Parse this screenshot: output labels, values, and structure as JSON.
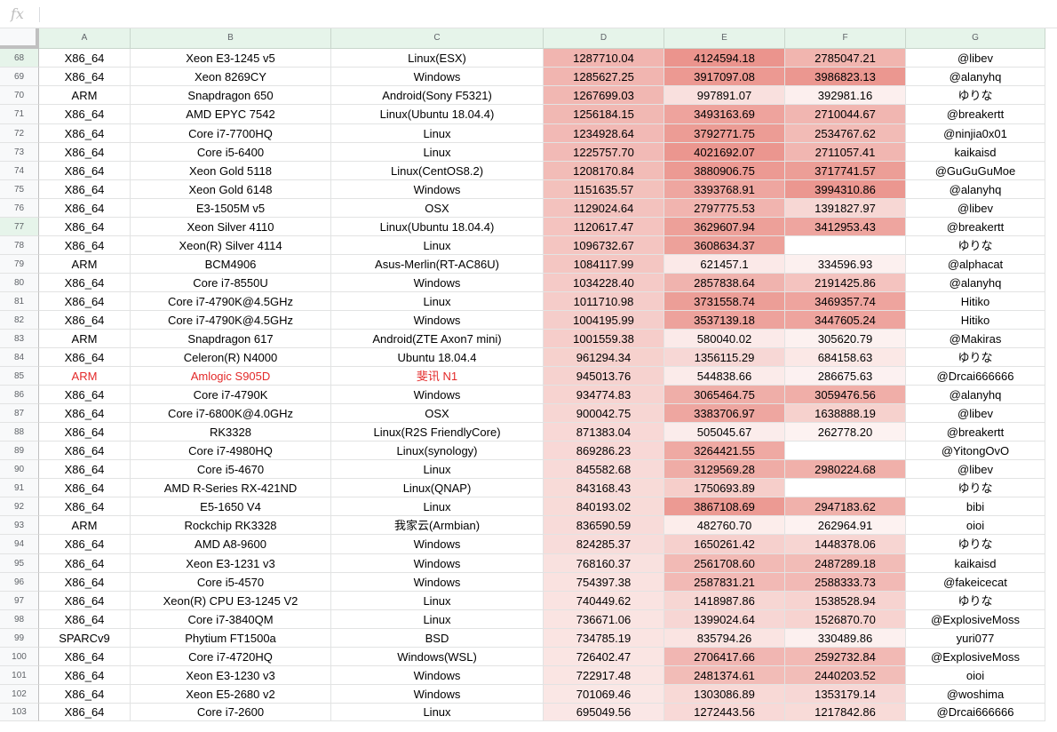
{
  "formula_bar": {
    "fx_label": "fx",
    "value": ""
  },
  "columns": [
    "A",
    "B",
    "C",
    "D",
    "E",
    "F",
    "G"
  ],
  "rows": [
    {
      "num": "68",
      "arch": "X86_64",
      "cpu": "Xeon E3-1245 v5",
      "os": "Linux(ESX)",
      "d": "1287710.04",
      "e": "4124594.18",
      "f": "2785047.21",
      "g": "@libev"
    },
    {
      "num": "69",
      "arch": "X86_64",
      "cpu": "Xeon 8269CY",
      "os": "Windows",
      "d": "1285627.25",
      "e": "3917097.08",
      "f": "3986823.13",
      "g": "@alanyhq"
    },
    {
      "num": "70",
      "arch": "ARM",
      "cpu": "Snapdragon 650",
      "os": "Android(Sony F5321)",
      "d": "1267699.03",
      "e": "997891.07",
      "f": "392981.16",
      "g": "ゆりな"
    },
    {
      "num": "71",
      "arch": "X86_64",
      "cpu": "AMD EPYC 7542",
      "os": "Linux(Ubuntu 18.04.4)",
      "d": "1256184.15",
      "e": "3493163.69",
      "f": "2710044.67",
      "g": "@breakertt"
    },
    {
      "num": "72",
      "arch": "X86_64",
      "cpu": "Core i7-7700HQ",
      "os": "Linux",
      "d": "1234928.64",
      "e": "3792771.75",
      "f": "2534767.62",
      "g": "@ninjia0x01"
    },
    {
      "num": "73",
      "arch": "X86_64",
      "cpu": "Core i5-6400",
      "os": "Linux",
      "d": "1225757.70",
      "e": "4021692.07",
      "f": "2711057.41",
      "g": "kaikaisd"
    },
    {
      "num": "74",
      "arch": "X86_64",
      "cpu": "Xeon Gold 5118",
      "os": "Linux(CentOS8.2)",
      "d": "1208170.84",
      "e": "3880906.75",
      "f": "3717741.57",
      "g": "@GuGuGuMoe"
    },
    {
      "num": "75",
      "arch": "X86_64",
      "cpu": "Xeon Gold 6148",
      "os": "Windows",
      "d": "1151635.57",
      "e": "3393768.91",
      "f": "3994310.86",
      "g": "@alanyhq"
    },
    {
      "num": "76",
      "arch": "X86_64",
      "cpu": "E3-1505M v5",
      "os": "OSX",
      "d": "1129024.64",
      "e": "2797775.53",
      "f": "1391827.97",
      "g": "@libev"
    },
    {
      "num": "77",
      "arch": "X86_64",
      "cpu": "Xeon Silver 4110",
      "os": "Linux(Ubuntu 18.04.4)",
      "d": "1120617.47",
      "e": "3629607.94",
      "f": "3412953.43",
      "g": "@breakertt"
    },
    {
      "num": "78",
      "arch": "X86_64",
      "cpu": "Xeon(R) Silver 4114",
      "os": "Linux",
      "d": "1096732.67",
      "e": "3608634.37",
      "f": "",
      "g": "ゆりな"
    },
    {
      "num": "79",
      "arch": "ARM",
      "cpu": "BCM4906",
      "os": "Asus-Merlin(RT-AC86U)",
      "d": "1084117.99",
      "e": "621457.1",
      "f": "334596.93",
      "g": "@alphacat"
    },
    {
      "num": "80",
      "arch": "X86_64",
      "cpu": "Core i7-8550U",
      "os": "Windows",
      "d": "1034228.40",
      "e": "2857838.64",
      "f": "2191425.86",
      "g": "@alanyhq"
    },
    {
      "num": "81",
      "arch": "X86_64",
      "cpu": "Core i7-4790K@4.5GHz",
      "os": "Linux",
      "d": "1011710.98",
      "e": "3731558.74",
      "f": "3469357.74",
      "g": "Hitiko"
    },
    {
      "num": "82",
      "arch": "X86_64",
      "cpu": "Core i7-4790K@4.5GHz",
      "os": "Windows",
      "d": "1004195.99",
      "e": "3537139.18",
      "f": "3447605.24",
      "g": "Hitiko"
    },
    {
      "num": "83",
      "arch": "ARM",
      "cpu": "Snapdragon 617",
      "os": "Android(ZTE Axon7 mini)",
      "d": "1001559.38",
      "e": "580040.02",
      "f": "305620.79",
      "g": "@Makiras"
    },
    {
      "num": "84",
      "arch": "X86_64",
      "cpu": "Celeron(R) N4000",
      "os": "Ubuntu 18.04.4",
      "d": "961294.34",
      "e": "1356115.29",
      "f": "684158.63",
      "g": "ゆりな"
    },
    {
      "num": "85",
      "arch": "ARM",
      "cpu": "Amlogic S905D",
      "os": "斐讯 N1",
      "d": "945013.76",
      "e": "544838.66",
      "f": "286675.63",
      "g": "@Drcai666666",
      "red": true
    },
    {
      "num": "86",
      "arch": "X86_64",
      "cpu": "Core i7-4790K",
      "os": "Windows",
      "d": "934774.83",
      "e": "3065464.75",
      "f": "3059476.56",
      "g": "@alanyhq"
    },
    {
      "num": "87",
      "arch": "X86_64",
      "cpu": "Core i7-6800K@4.0GHz",
      "os": "OSX",
      "d": "900042.75",
      "e": "3383706.97",
      "f": "1638888.19",
      "g": "@libev"
    },
    {
      "num": "88",
      "arch": "X86_64",
      "cpu": "RK3328",
      "os": "Linux(R2S FriendlyCore)",
      "d": "871383.04",
      "e": "505045.67",
      "f": "262778.20",
      "g": "@breakertt"
    },
    {
      "num": "89",
      "arch": "X86_64",
      "cpu": "Core i7-4980HQ",
      "os": "Linux(synology)",
      "d": "869286.23",
      "e": "3264421.55",
      "f": "",
      "g": "@YitongOvO"
    },
    {
      "num": "90",
      "arch": "X86_64",
      "cpu": "Core i5-4670",
      "os": "Linux",
      "d": "845582.68",
      "e": "3129569.28",
      "f": "2980224.68",
      "g": "@libev"
    },
    {
      "num": "91",
      "arch": "X86_64",
      "cpu": "AMD R-Series RX-421ND",
      "os": "Linux(QNAP)",
      "d": "843168.43",
      "e": "1750693.89",
      "f": "",
      "g": "ゆりな"
    },
    {
      "num": "92",
      "arch": "X86_64",
      "cpu": "E5-1650 V4",
      "os": "Linux",
      "d": "840193.02",
      "e": "3867108.69",
      "f": "2947183.62",
      "g": "bibi"
    },
    {
      "num": "93",
      "arch": "ARM",
      "cpu": "Rockchip RK3328",
      "os": "我家云(Armbian)",
      "d": "836590.59",
      "e": "482760.70",
      "f": "262964.91",
      "g": "oioi"
    },
    {
      "num": "94",
      "arch": "X86_64",
      "cpu": "AMD A8-9600",
      "os": "Windows",
      "d": "824285.37",
      "e": "1650261.42",
      "f": "1448378.06",
      "g": "ゆりな"
    },
    {
      "num": "95",
      "arch": "X86_64",
      "cpu": "Xeon E3-1231 v3",
      "os": "Windows",
      "d": "768160.37",
      "e": "2561708.60",
      "f": "2487289.18",
      "g": "kaikaisd"
    },
    {
      "num": "96",
      "arch": "X86_64",
      "cpu": "Core i5-4570",
      "os": "Windows",
      "d": "754397.38",
      "e": "2587831.21",
      "f": "2588333.73",
      "g": "@fakeicecat"
    },
    {
      "num": "97",
      "arch": "X86_64",
      "cpu": "Xeon(R) CPU E3-1245 V2",
      "os": "Linux",
      "d": "740449.62",
      "e": "1418987.86",
      "f": "1538528.94",
      "g": "ゆりな"
    },
    {
      "num": "98",
      "arch": "X86_64",
      "cpu": "Core i7-3840QM",
      "os": "Linux",
      "d": "736671.06",
      "e": "1399024.64",
      "f": "1526870.70",
      "g": "@ExplosiveMoss"
    },
    {
      "num": "99",
      "arch": "SPARCv9",
      "cpu": "Phytium FT1500a",
      "os": "BSD",
      "d": "734785.19",
      "e": "835794.26",
      "f": "330489.86",
      "g": "yuri077"
    },
    {
      "num": "100",
      "arch": "X86_64",
      "cpu": "Core i7-4720HQ",
      "os": "Windows(WSL)",
      "d": "726402.47",
      "e": "2706417.66",
      "f": "2592732.84",
      "g": "@ExplosiveMoss"
    },
    {
      "num": "101",
      "arch": "X86_64",
      "cpu": "Xeon E3-1230 v3",
      "os": "Windows",
      "d": "722917.48",
      "e": "2481374.61",
      "f": "2440203.52",
      "g": "oioi"
    },
    {
      "num": "102",
      "arch": "X86_64",
      "cpu": "Xeon E5-2680 v2",
      "os": "Windows",
      "d": "701069.46",
      "e": "1303086.89",
      "f": "1353179.14",
      "g": "@woshima"
    },
    {
      "num": "103",
      "arch": "X86_64",
      "cpu": "Core i7-2600",
      "os": "Linux",
      "d": "695049.56",
      "e": "1272443.56",
      "f": "1217842.86",
      "g": "@Drcai666666"
    }
  ],
  "colors": {
    "heat_max": "#e67c73",
    "heat_min": "#ffffff",
    "header_green": "#e6f4ea",
    "red_text": "#e32929"
  }
}
